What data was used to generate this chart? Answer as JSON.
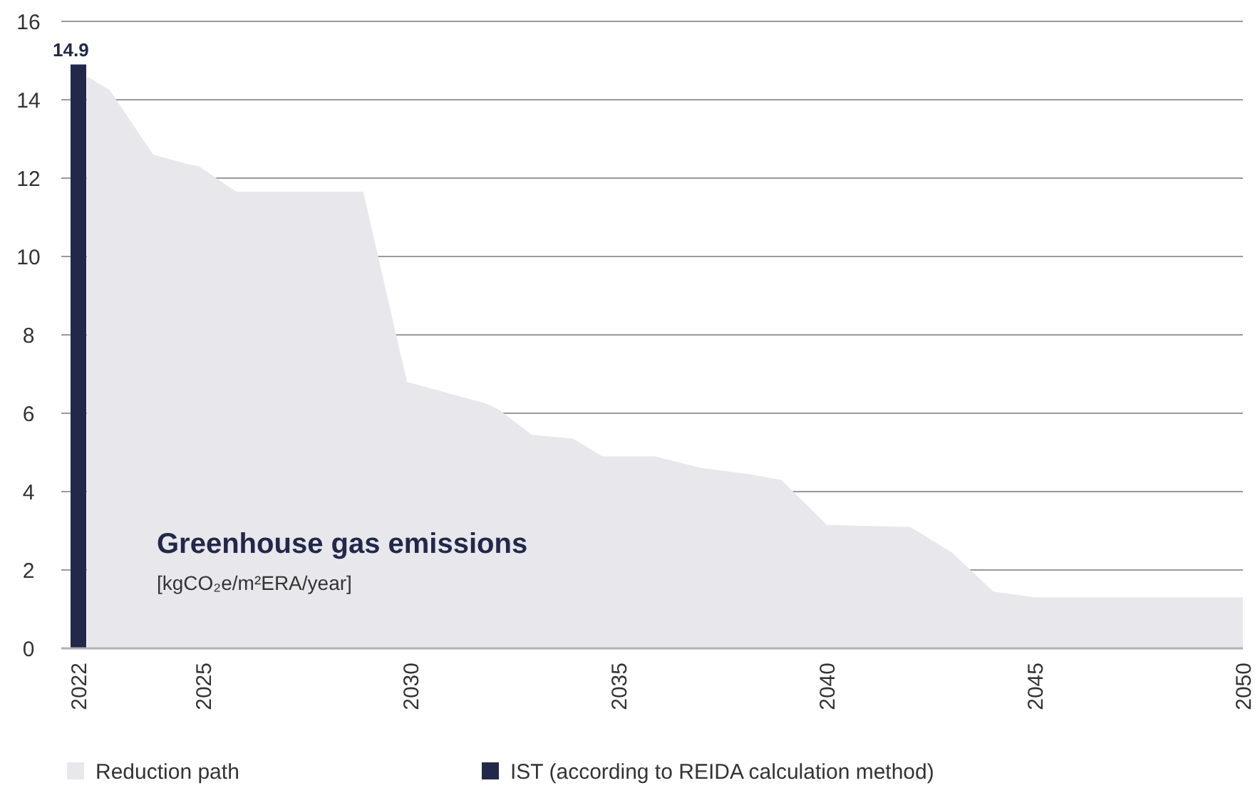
{
  "chart_data": {
    "type": "area",
    "title": "Greenhouse gas emissions",
    "ylabel": "[kgCO₂e/m²ERA/year]",
    "xlim": [
      2022,
      2050
    ],
    "xticks": [
      2022,
      2025,
      2030,
      2035,
      2040,
      2045,
      2050
    ],
    "ylim": [
      0,
      16
    ],
    "yticks": [
      0,
      2,
      4,
      6,
      8,
      10,
      12,
      14,
      16
    ],
    "grid": "y",
    "legend": "bottom",
    "series": [
      {
        "name": "Reduction path",
        "color": "#e8e8ec",
        "x": [
          2022.2,
          2022.75,
          2023.8,
          2024.65,
          2024.9,
          2025.8,
          2028.85,
          2029.9,
          2031.8,
          2032.1,
          2032.9,
          2033.9,
          2034.6,
          2035.85,
          2037,
          2038.1,
          2038.9,
          2040,
          2042,
          2043,
          2044,
          2045,
          2050
        ],
        "values": [
          14.6,
          14.25,
          12.6,
          12.35,
          12.3,
          11.65,
          11.65,
          6.8,
          6.25,
          6.1,
          5.45,
          5.35,
          4.9,
          4.9,
          4.6,
          4.45,
          4.3,
          3.15,
          3.1,
          2.45,
          1.45,
          1.3,
          1.3
        ]
      },
      {
        "name": "IST (according to REIDA calculation method)",
        "type": "bar",
        "color": "#22284a",
        "x": [
          2022
        ],
        "values": [
          14.9
        ],
        "value_labels": [
          "14.9"
        ]
      }
    ]
  }
}
